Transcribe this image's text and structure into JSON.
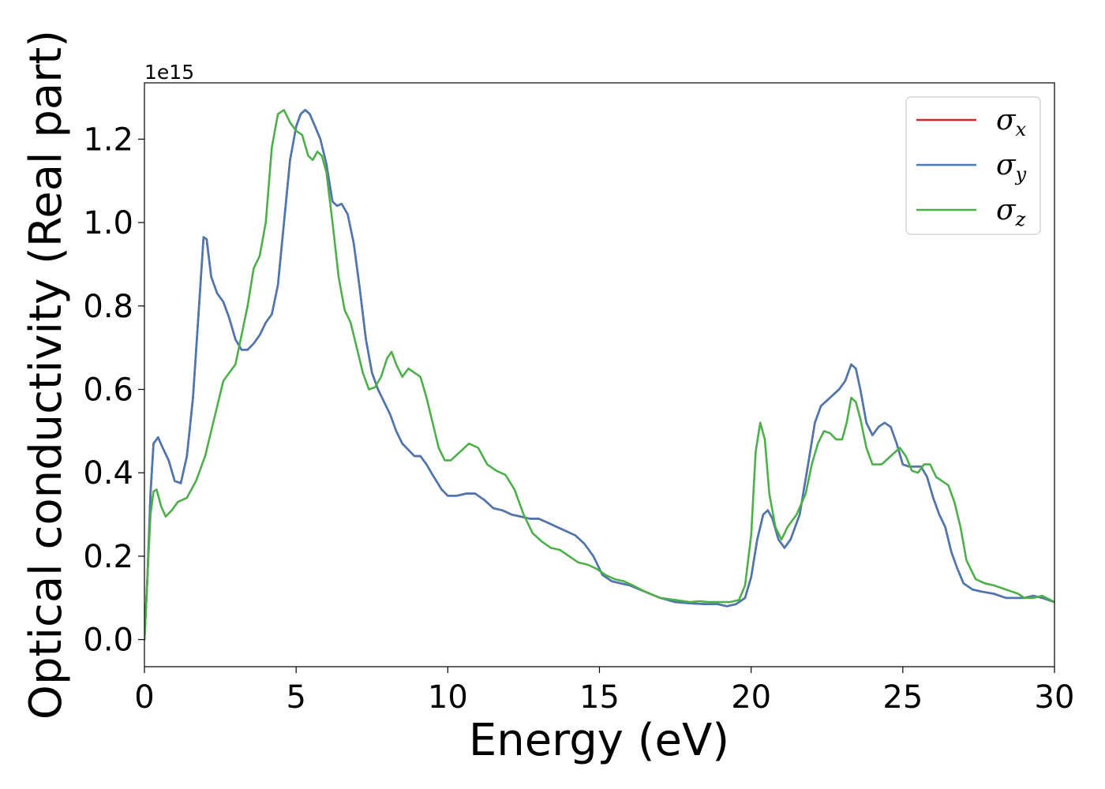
{
  "chart_data": {
    "type": "line",
    "title": "",
    "xlabel": "Energy (eV)",
    "ylabel": "Optical conductivity (Real part)",
    "y_offset_label": "1e15",
    "xlim": [
      0,
      30
    ],
    "ylim": [
      -0.065,
      1.335
    ],
    "x_ticks": [
      0,
      5,
      10,
      15,
      20,
      25,
      30
    ],
    "x_tick_labels": [
      "0",
      "5",
      "10",
      "15",
      "20",
      "25",
      "30"
    ],
    "y_ticks": [
      0.0,
      0.2,
      0.4,
      0.6,
      0.8,
      1.0,
      1.2
    ],
    "y_tick_labels": [
      "0.0",
      "0.2",
      "0.4",
      "0.6",
      "0.8",
      "1.0",
      "1.2"
    ],
    "grid": false,
    "legend_position": "top-right",
    "series": [
      {
        "name": "σx",
        "symbol": "σ",
        "subscript": "x",
        "color": "#d62728",
        "x": [
          0.0,
          0.1,
          0.2,
          0.3,
          0.45,
          0.6,
          0.8,
          1.0,
          1.2,
          1.4,
          1.6,
          1.8,
          1.95,
          2.05,
          2.2,
          2.4,
          2.6,
          2.8,
          3.0,
          3.2,
          3.4,
          3.6,
          3.8,
          4.0,
          4.2,
          4.4,
          4.6,
          4.8,
          5.0,
          5.15,
          5.3,
          5.45,
          5.6,
          5.8,
          6.0,
          6.2,
          6.35,
          6.5,
          6.7,
          6.9,
          7.1,
          7.3,
          7.5,
          7.7,
          7.9,
          8.1,
          8.3,
          8.5,
          8.7,
          8.9,
          9.1,
          9.3,
          9.5,
          9.8,
          10.0,
          10.3,
          10.6,
          10.9,
          11.2,
          11.5,
          11.8,
          12.1,
          12.4,
          12.7,
          13.0,
          13.3,
          13.6,
          13.9,
          14.2,
          14.5,
          14.8,
          15.1,
          15.4,
          15.7,
          16.0,
          16.5,
          17.0,
          17.5,
          18.0,
          18.5,
          18.9,
          19.2,
          19.5,
          19.8,
          20.0,
          20.2,
          20.4,
          20.55,
          20.7,
          20.9,
          21.1,
          21.3,
          21.6,
          21.9,
          22.1,
          22.3,
          22.6,
          22.9,
          23.1,
          23.3,
          23.45,
          23.6,
          23.8,
          24.0,
          24.2,
          24.4,
          24.6,
          24.8,
          25.0,
          25.2,
          25.4,
          25.6,
          25.8,
          26.0,
          26.2,
          26.4,
          26.6,
          26.8,
          27.0,
          27.3,
          27.6,
          28.0,
          28.4,
          28.8,
          29.0,
          29.3,
          29.6,
          30.0
        ],
        "y": [
          0.0,
          0.15,
          0.35,
          0.47,
          0.485,
          0.46,
          0.43,
          0.38,
          0.375,
          0.44,
          0.58,
          0.8,
          0.965,
          0.96,
          0.87,
          0.83,
          0.81,
          0.77,
          0.72,
          0.695,
          0.695,
          0.71,
          0.73,
          0.76,
          0.78,
          0.85,
          1.0,
          1.15,
          1.23,
          1.26,
          1.27,
          1.26,
          1.235,
          1.2,
          1.14,
          1.05,
          1.04,
          1.045,
          1.02,
          0.95,
          0.84,
          0.72,
          0.64,
          0.6,
          0.57,
          0.54,
          0.5,
          0.47,
          0.455,
          0.44,
          0.44,
          0.42,
          0.395,
          0.36,
          0.345,
          0.345,
          0.35,
          0.35,
          0.335,
          0.315,
          0.31,
          0.3,
          0.295,
          0.29,
          0.29,
          0.28,
          0.27,
          0.26,
          0.25,
          0.23,
          0.2,
          0.155,
          0.14,
          0.135,
          0.13,
          0.115,
          0.1,
          0.09,
          0.087,
          0.085,
          0.085,
          0.08,
          0.085,
          0.1,
          0.15,
          0.24,
          0.3,
          0.31,
          0.29,
          0.24,
          0.22,
          0.24,
          0.3,
          0.43,
          0.52,
          0.56,
          0.58,
          0.6,
          0.62,
          0.66,
          0.65,
          0.6,
          0.52,
          0.49,
          0.51,
          0.52,
          0.51,
          0.47,
          0.42,
          0.415,
          0.415,
          0.415,
          0.39,
          0.34,
          0.3,
          0.27,
          0.21,
          0.17,
          0.135,
          0.12,
          0.115,
          0.11,
          0.1,
          0.1,
          0.1,
          0.105,
          0.1,
          0.09
        ]
      },
      {
        "name": "σy",
        "symbol": "σ",
        "subscript": "y",
        "color": "#4a78b0",
        "x": [
          0.0,
          0.1,
          0.2,
          0.3,
          0.45,
          0.6,
          0.8,
          1.0,
          1.2,
          1.4,
          1.6,
          1.8,
          1.95,
          2.05,
          2.2,
          2.4,
          2.6,
          2.8,
          3.0,
          3.2,
          3.4,
          3.6,
          3.8,
          4.0,
          4.2,
          4.4,
          4.6,
          4.8,
          5.0,
          5.15,
          5.3,
          5.45,
          5.6,
          5.8,
          6.0,
          6.2,
          6.35,
          6.5,
          6.7,
          6.9,
          7.1,
          7.3,
          7.5,
          7.7,
          7.9,
          8.1,
          8.3,
          8.5,
          8.7,
          8.9,
          9.1,
          9.3,
          9.5,
          9.8,
          10.0,
          10.3,
          10.6,
          10.9,
          11.2,
          11.5,
          11.8,
          12.1,
          12.4,
          12.7,
          13.0,
          13.3,
          13.6,
          13.9,
          14.2,
          14.5,
          14.8,
          15.1,
          15.4,
          15.7,
          16.0,
          16.5,
          17.0,
          17.5,
          18.0,
          18.5,
          18.9,
          19.2,
          19.5,
          19.8,
          20.0,
          20.2,
          20.4,
          20.55,
          20.7,
          20.9,
          21.1,
          21.3,
          21.6,
          21.9,
          22.1,
          22.3,
          22.6,
          22.9,
          23.1,
          23.3,
          23.45,
          23.6,
          23.8,
          24.0,
          24.2,
          24.4,
          24.6,
          24.8,
          25.0,
          25.2,
          25.4,
          25.6,
          25.8,
          26.0,
          26.2,
          26.4,
          26.6,
          26.8,
          27.0,
          27.3,
          27.6,
          28.0,
          28.4,
          28.8,
          29.0,
          29.3,
          29.6,
          30.0
        ],
        "y": [
          0.0,
          0.15,
          0.35,
          0.47,
          0.485,
          0.46,
          0.43,
          0.38,
          0.375,
          0.44,
          0.58,
          0.8,
          0.965,
          0.96,
          0.87,
          0.83,
          0.81,
          0.77,
          0.72,
          0.695,
          0.695,
          0.71,
          0.73,
          0.76,
          0.78,
          0.85,
          1.0,
          1.15,
          1.23,
          1.26,
          1.27,
          1.26,
          1.235,
          1.2,
          1.14,
          1.05,
          1.04,
          1.045,
          1.02,
          0.95,
          0.84,
          0.72,
          0.64,
          0.6,
          0.57,
          0.54,
          0.5,
          0.47,
          0.455,
          0.44,
          0.44,
          0.42,
          0.395,
          0.36,
          0.345,
          0.345,
          0.35,
          0.35,
          0.335,
          0.315,
          0.31,
          0.3,
          0.295,
          0.29,
          0.29,
          0.28,
          0.27,
          0.26,
          0.25,
          0.23,
          0.2,
          0.155,
          0.14,
          0.135,
          0.13,
          0.115,
          0.1,
          0.09,
          0.087,
          0.085,
          0.085,
          0.08,
          0.085,
          0.1,
          0.15,
          0.24,
          0.3,
          0.31,
          0.29,
          0.24,
          0.22,
          0.24,
          0.3,
          0.43,
          0.52,
          0.56,
          0.58,
          0.6,
          0.62,
          0.66,
          0.65,
          0.6,
          0.52,
          0.49,
          0.51,
          0.52,
          0.51,
          0.47,
          0.42,
          0.415,
          0.415,
          0.415,
          0.39,
          0.34,
          0.3,
          0.27,
          0.21,
          0.17,
          0.135,
          0.12,
          0.115,
          0.11,
          0.1,
          0.1,
          0.1,
          0.105,
          0.1,
          0.09
        ]
      },
      {
        "name": "σz",
        "symbol": "σ",
        "subscript": "z",
        "color": "#4daf4a",
        "x": [
          0.0,
          0.1,
          0.2,
          0.3,
          0.4,
          0.55,
          0.7,
          0.9,
          1.1,
          1.4,
          1.7,
          2.0,
          2.3,
          2.6,
          2.8,
          3.0,
          3.2,
          3.4,
          3.6,
          3.8,
          4.0,
          4.2,
          4.4,
          4.6,
          4.8,
          5.0,
          5.2,
          5.4,
          5.55,
          5.7,
          5.85,
          6.0,
          6.2,
          6.4,
          6.6,
          6.8,
          7.0,
          7.2,
          7.4,
          7.6,
          7.8,
          8.0,
          8.15,
          8.3,
          8.5,
          8.7,
          8.9,
          9.1,
          9.3,
          9.5,
          9.7,
          9.9,
          10.1,
          10.4,
          10.7,
          11.0,
          11.3,
          11.6,
          11.9,
          12.2,
          12.5,
          12.8,
          13.1,
          13.4,
          13.7,
          14.0,
          14.3,
          14.6,
          14.9,
          15.2,
          15.5,
          15.8,
          16.1,
          16.5,
          17.0,
          17.5,
          18.0,
          18.3,
          18.6,
          19.0,
          19.3,
          19.6,
          19.8,
          20.0,
          20.15,
          20.3,
          20.45,
          20.6,
          20.8,
          21.0,
          21.2,
          21.5,
          21.8,
          22.0,
          22.2,
          22.4,
          22.6,
          22.8,
          23.0,
          23.15,
          23.3,
          23.45,
          23.6,
          23.8,
          24.0,
          24.3,
          24.6,
          24.9,
          25.1,
          25.3,
          25.5,
          25.7,
          25.9,
          26.1,
          26.3,
          26.5,
          26.7,
          26.9,
          27.1,
          27.4,
          27.7,
          28.0,
          28.4,
          28.8,
          29.0,
          29.3,
          29.6,
          30.0
        ],
        "y": [
          0.0,
          0.15,
          0.3,
          0.355,
          0.36,
          0.32,
          0.295,
          0.31,
          0.33,
          0.34,
          0.38,
          0.44,
          0.53,
          0.62,
          0.64,
          0.66,
          0.73,
          0.8,
          0.89,
          0.92,
          1.0,
          1.18,
          1.26,
          1.27,
          1.24,
          1.22,
          1.21,
          1.16,
          1.15,
          1.17,
          1.16,
          1.12,
          1.0,
          0.87,
          0.79,
          0.76,
          0.7,
          0.64,
          0.6,
          0.605,
          0.63,
          0.675,
          0.69,
          0.66,
          0.63,
          0.65,
          0.64,
          0.63,
          0.58,
          0.52,
          0.46,
          0.43,
          0.43,
          0.45,
          0.47,
          0.46,
          0.42,
          0.405,
          0.395,
          0.36,
          0.3,
          0.255,
          0.235,
          0.22,
          0.215,
          0.2,
          0.185,
          0.18,
          0.17,
          0.155,
          0.145,
          0.14,
          0.13,
          0.115,
          0.1,
          0.095,
          0.09,
          0.092,
          0.09,
          0.09,
          0.09,
          0.095,
          0.13,
          0.25,
          0.45,
          0.52,
          0.48,
          0.35,
          0.27,
          0.24,
          0.27,
          0.3,
          0.35,
          0.42,
          0.47,
          0.5,
          0.495,
          0.48,
          0.48,
          0.52,
          0.58,
          0.57,
          0.53,
          0.46,
          0.42,
          0.42,
          0.44,
          0.46,
          0.44,
          0.405,
          0.4,
          0.42,
          0.42,
          0.39,
          0.38,
          0.37,
          0.33,
          0.27,
          0.19,
          0.145,
          0.135,
          0.13,
          0.12,
          0.11,
          0.1,
          0.1,
          0.105,
          0.09
        ]
      }
    ]
  }
}
